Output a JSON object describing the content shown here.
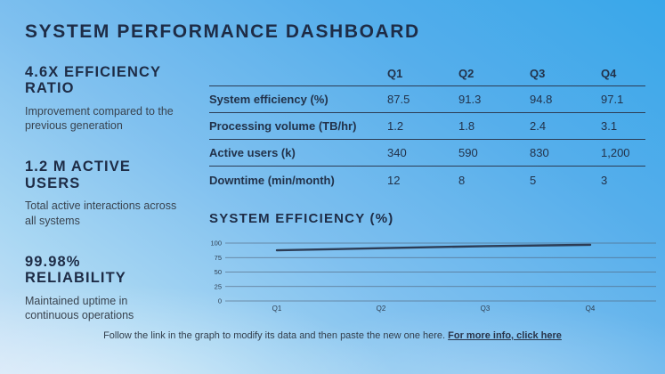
{
  "title": "SYSTEM PERFORMANCE DASHBOARD",
  "stats": [
    {
      "heading": "4.6X EFFICIENCY RATIO",
      "description": "Improvement compared to the previous generation"
    },
    {
      "heading": "1.2 M ACTIVE USERS",
      "description": "Total active interactions across all systems"
    },
    {
      "heading": "99.98% RELIABILITY",
      "description": "Maintained uptime in continuous operations"
    }
  ],
  "table": {
    "columns": [
      "Q1",
      "Q2",
      "Q3",
      "Q4"
    ],
    "rows": [
      {
        "label": "System efficiency (%)",
        "values": [
          "87.5",
          "91.3",
          "94.8",
          "97.1"
        ]
      },
      {
        "label": "Processing volume (TB/hr)",
        "values": [
          "1.2",
          "1.8",
          "2.4",
          "3.1"
        ]
      },
      {
        "label": "Active users (k)",
        "values": [
          "340",
          "590",
          "830",
          "1,200"
        ]
      },
      {
        "label": "Downtime (min/month)",
        "values": [
          "12",
          "8",
          "5",
          "3"
        ]
      }
    ]
  },
  "chart_data": {
    "type": "line",
    "title": "SYSTEM EFFICIENCY (%)",
    "categories": [
      "Q1",
      "Q2",
      "Q3",
      "Q4"
    ],
    "values": [
      87.5,
      91.3,
      94.8,
      97.1
    ],
    "ylim": [
      0,
      100
    ],
    "yticks": [
      100,
      75,
      50,
      25,
      0
    ],
    "grid": true,
    "legend": false,
    "line_color": "#2c3c55"
  },
  "footer": {
    "text": "Follow the link in the graph to modify its data and then paste the new one here. ",
    "link_label": "For more info, click here"
  },
  "colors": {
    "heading": "#1e2c46",
    "body_text": "#39434f",
    "table_rule": "#2c3c54",
    "gridline": "#4f6076",
    "chart_line": "#2c3c55",
    "bg_top": "#38a7ea",
    "bg_bottom": "#cfe4f7"
  }
}
